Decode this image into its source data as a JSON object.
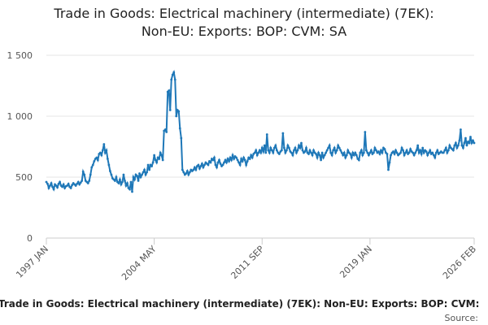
{
  "chart_data": {
    "type": "line",
    "title": [
      "Trade in Goods: Electrical machinery (intermediate) (7EK):",
      "Non-EU: Exports: BOP: CVM: SA"
    ],
    "footer_title": "Trade in Goods: Electrical machinery (intermediate) (7EK): Non-EU: Exports: BOP: CVM:",
    "source_label": "Source:",
    "color": "#1f78b8",
    "grid": true,
    "xlim": [
      0,
      349
    ],
    "xticks": [
      {
        "value": 0,
        "label": "1997 JAN"
      },
      {
        "value": 88,
        "label": "2004 MAY"
      },
      {
        "value": 176,
        "label": "2011 SEP"
      },
      {
        "value": 264,
        "label": "2019 JAN"
      },
      {
        "value": 349,
        "label": "2026 FEB"
      }
    ],
    "ylim": [
      0,
      1500
    ],
    "yticks": [
      0,
      500,
      {
        "value": 1000,
        "label": "1 000"
      },
      {
        "value": 1500,
        "label": "1 500"
      }
    ],
    "values": [
      460,
      445,
      410,
      430,
      450,
      420,
      400,
      440,
      430,
      415,
      445,
      460,
      430,
      420,
      440,
      410,
      425,
      430,
      445,
      420,
      410,
      435,
      450,
      440,
      430,
      445,
      460,
      440,
      455,
      470,
      545,
      520,
      470,
      460,
      450,
      470,
      520,
      580,
      600,
      630,
      650,
      660,
      640,
      690,
      700,
      680,
      720,
      770,
      700,
      720,
      650,
      600,
      550,
      520,
      490,
      480,
      470,
      500,
      460,
      450,
      480,
      440,
      460,
      520,
      470,
      430,
      450,
      410,
      400,
      460,
      380,
      500,
      480,
      520,
      510,
      470,
      530,
      500,
      520,
      540,
      560,
      520,
      540,
      600,
      560,
      600,
      590,
      620,
      680,
      640,
      620,
      660,
      650,
      700,
      680,
      640,
      880,
      890,
      870,
      1200,
      1210,
      1050,
      1300,
      1340,
      1360,
      1300,
      1000,
      1050,
      1040,
      900,
      820,
      560,
      540,
      520,
      530,
      550,
      520,
      540,
      560,
      550,
      560,
      580,
      560,
      590,
      600,
      570,
      590,
      610,
      580,
      600,
      620,
      610,
      600,
      630,
      620,
      650,
      640,
      660,
      600,
      580,
      620,
      640,
      610,
      590,
      600,
      620,
      640,
      620,
      650,
      630,
      660,
      640,
      680,
      650,
      670,
      660,
      640,
      620,
      600,
      650,
      630,
      660,
      640,
      600,
      630,
      660,
      650,
      680,
      660,
      690,
      700,
      720,
      680,
      700,
      720,
      700,
      740,
      710,
      760,
      700,
      850,
      720,
      700,
      740,
      720,
      700,
      740,
      760,
      720,
      700,
      690,
      710,
      720,
      860,
      740,
      700,
      720,
      760,
      740,
      710,
      700,
      680,
      720,
      740,
      700,
      720,
      760,
      740,
      780,
      720,
      700,
      710,
      740,
      700,
      690,
      720,
      700,
      680,
      720,
      700,
      690,
      660,
      700,
      680,
      640,
      700,
      660,
      680,
      700,
      720,
      740,
      760,
      700,
      680,
      720,
      740,
      700,
      720,
      760,
      740,
      720,
      700,
      680,
      700,
      660,
      680,
      720,
      700,
      690,
      660,
      700,
      680,
      700,
      680,
      650,
      640,
      700,
      720,
      680,
      700,
      870,
      720,
      700,
      680,
      700,
      720,
      690,
      700,
      740,
      720,
      700,
      710,
      690,
      720,
      700,
      740,
      730,
      700,
      690,
      560,
      620,
      680,
      700,
      710,
      690,
      720,
      700,
      680,
      690,
      700,
      740,
      720,
      680,
      700,
      720,
      690,
      700,
      730,
      710,
      700,
      680,
      700,
      720,
      760,
      700,
      720,
      690,
      740,
      700,
      720,
      710,
      680,
      700,
      720,
      690,
      700,
      680,
      660,
      700,
      720,
      690,
      700,
      710,
      700,
      700,
      720,
      740,
      700,
      720,
      760,
      740,
      730,
      720,
      760,
      780,
      740,
      760,
      800,
      890,
      760,
      740,
      780,
      820,
      760,
      790,
      780,
      830,
      780,
      800,
      780
    ]
  }
}
